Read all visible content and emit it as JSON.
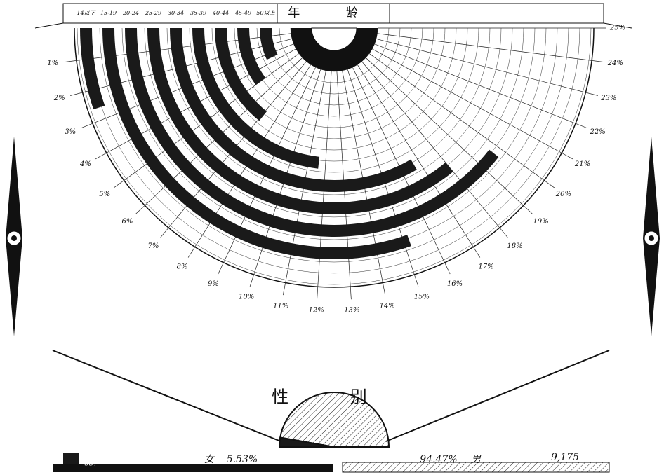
{
  "chart_data": [
    {
      "type": "radial-bar",
      "title": "年 龄",
      "categories": [
        "14以下",
        "15-19",
        "20-24",
        "25-29",
        "30-34",
        "35-39",
        "40-44",
        "45-49",
        "50以上"
      ],
      "values": [
        2.6,
        15.2,
        19.7,
        18,
        16.7,
        11.6,
        7.1,
        5,
        3.5
      ],
      "color": "#1a1a1a",
      "ylim": [
        0,
        25
      ],
      "yticks": [
        {
          "value": 1,
          "label": "1%"
        },
        {
          "value": 2,
          "label": "2%"
        },
        {
          "value": 3,
          "label": "3%"
        },
        {
          "value": 4,
          "label": "4%"
        },
        {
          "value": 5,
          "label": "5%"
        },
        {
          "value": 6,
          "label": "6%"
        },
        {
          "value": 7,
          "label": "7%"
        },
        {
          "value": 8,
          "label": "8%"
        },
        {
          "value": 9,
          "label": "9%"
        },
        {
          "value": 10,
          "label": "10%"
        },
        {
          "value": 11,
          "label": "11%"
        },
        {
          "value": 12,
          "label": "12%"
        },
        {
          "value": 13,
          "label": "13%"
        },
        {
          "value": 14,
          "label": "14%"
        },
        {
          "value": 15,
          "label": "15%"
        },
        {
          "value": 16,
          "label": "16%"
        },
        {
          "value": 17,
          "label": "17%"
        },
        {
          "value": 18,
          "label": "18%"
        },
        {
          "value": 19,
          "label": "19%"
        },
        {
          "value": 20,
          "label": "20%"
        },
        {
          "value": 21,
          "label": "21%"
        },
        {
          "value": 22,
          "label": "22%"
        },
        {
          "value": 23,
          "label": "23%"
        },
        {
          "value": 24,
          "label": "24%"
        },
        {
          "value": 25,
          "label": "25%"
        }
      ],
      "grid": true
    },
    {
      "type": "half-pie",
      "title": "性 别",
      "categories": [
        "女",
        "男"
      ],
      "values": [
        5.53,
        94.47
      ],
      "value_labels": [
        "5.53%",
        "94.47%"
      ],
      "counts": [
        537,
        9175
      ],
      "count_labels": [
        "537",
        "9,175"
      ],
      "colors": [
        "#1a1a1a",
        "#ffffff"
      ]
    }
  ]
}
